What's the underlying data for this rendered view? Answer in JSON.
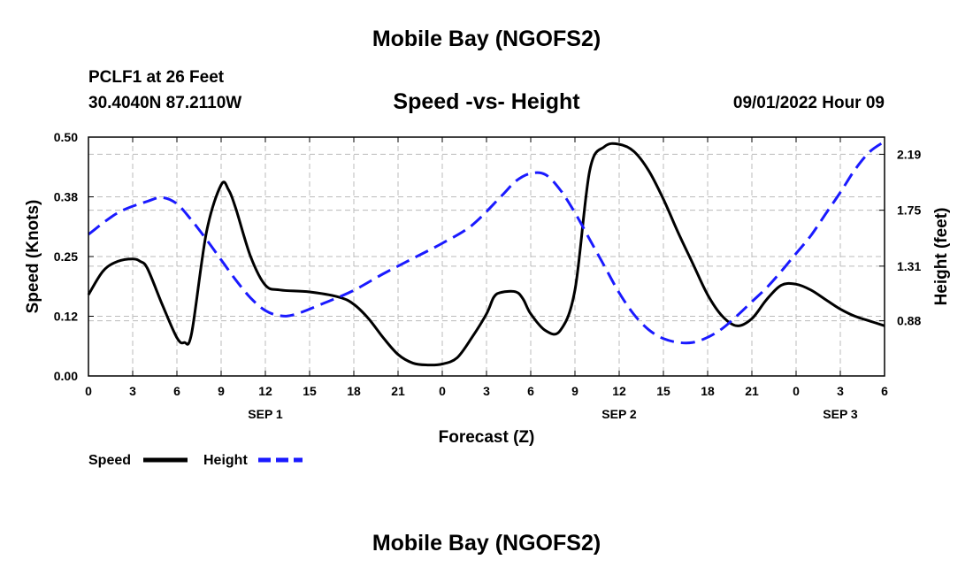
{
  "header": {
    "title": "Mobile Bay (NGOFS2)",
    "station": "PCLF1 at 26 Feet",
    "coords": "30.4040N  87.2110W",
    "subtitle": "Speed -vs- Height",
    "datetime": "09/01/2022 Hour 09",
    "footer_title": "Mobile Bay (NGOFS2)"
  },
  "colors": {
    "speed": "#000000",
    "height": "#1a1aff",
    "grid": "#bbbbbb"
  },
  "chart_data": {
    "type": "line",
    "title": "Speed -vs- Height",
    "xlabel": "Forecast (Z)",
    "ylabel": "Speed (Knots)",
    "y2label": "Height (feet)",
    "x_unit": "hours from 2022-09-01 00Z",
    "xlim": [
      0,
      54
    ],
    "ylim": [
      0,
      0.5
    ],
    "y2lim": [
      0.446,
      2.325
    ],
    "x_tick_labels": [
      "0",
      "3",
      "6",
      "9",
      "12",
      "15",
      "18",
      "21",
      "0",
      "3",
      "6",
      "9",
      "12",
      "15",
      "18",
      "21",
      "0",
      "3",
      "6"
    ],
    "y_tick_labels": [
      "0.00",
      "0.12",
      "0.25",
      "0.38",
      "0.50"
    ],
    "y_tick_values": [
      0,
      0.125,
      0.25,
      0.375,
      0.5
    ],
    "y2_tick_labels": [
      "0.88",
      "1.31",
      "1.75",
      "2.19"
    ],
    "y2_tick_values": [
      0.88,
      1.31,
      1.75,
      2.19
    ],
    "date_labels": [
      {
        "text": "SEP 1",
        "x": 12
      },
      {
        "text": "SEP 2",
        "x": 36
      },
      {
        "text": "SEP 3",
        "x": 51
      }
    ],
    "grid": true,
    "legend_position": "bottom-left",
    "series": [
      {
        "name": "Speed",
        "axis": "left",
        "style": "solid",
        "x": [
          0,
          1,
          2,
          3,
          3.5,
          4,
          5,
          6,
          6.5,
          7,
          8,
          9,
          9.5,
          10,
          11,
          12,
          13,
          15,
          17,
          18,
          19,
          20,
          21,
          22,
          23,
          24,
          25,
          26,
          27,
          27.5,
          28,
          29,
          29.5,
          30,
          31,
          32,
          33,
          34,
          35,
          36,
          37,
          38,
          39,
          40,
          41,
          42,
          43,
          44,
          45,
          46,
          47,
          48,
          49,
          50,
          51,
          52,
          53,
          54
        ],
        "values": [
          0.17,
          0.22,
          0.24,
          0.245,
          0.24,
          0.225,
          0.15,
          0.08,
          0.07,
          0.09,
          0.3,
          0.4,
          0.39,
          0.35,
          0.25,
          0.19,
          0.18,
          0.176,
          0.165,
          0.15,
          0.12,
          0.08,
          0.045,
          0.027,
          0.023,
          0.025,
          0.038,
          0.08,
          0.13,
          0.165,
          0.175,
          0.176,
          0.16,
          0.13,
          0.095,
          0.095,
          0.18,
          0.43,
          0.48,
          0.485,
          0.47,
          0.43,
          0.37,
          0.3,
          0.235,
          0.17,
          0.125,
          0.105,
          0.12,
          0.16,
          0.19,
          0.192,
          0.18,
          0.16,
          0.14,
          0.125,
          0.115,
          0.105
        ]
      },
      {
        "name": "Height",
        "axis": "right",
        "style": "dashed",
        "x": [
          0,
          2,
          4,
          5,
          6,
          7,
          8,
          9,
          10,
          11,
          12,
          13,
          14,
          16,
          18,
          20,
          22,
          24,
          26,
          28,
          29,
          30,
          31,
          32,
          33,
          34,
          35,
          36,
          37,
          38,
          39,
          40,
          41,
          42,
          43,
          44,
          45,
          46,
          47,
          48,
          49,
          50,
          51,
          52,
          53,
          54
        ],
        "values": [
          1.56,
          1.73,
          1.82,
          1.85,
          1.8,
          1.67,
          1.52,
          1.36,
          1.2,
          1.06,
          0.96,
          0.92,
          0.93,
          1.02,
          1.12,
          1.25,
          1.37,
          1.49,
          1.63,
          1.86,
          1.98,
          2.04,
          2.03,
          1.91,
          1.73,
          1.52,
          1.31,
          1.1,
          0.93,
          0.81,
          0.74,
          0.71,
          0.71,
          0.75,
          0.82,
          0.92,
          1.03,
          1.14,
          1.27,
          1.41,
          1.55,
          1.72,
          1.89,
          2.07,
          2.21,
          2.29
        ]
      }
    ]
  }
}
